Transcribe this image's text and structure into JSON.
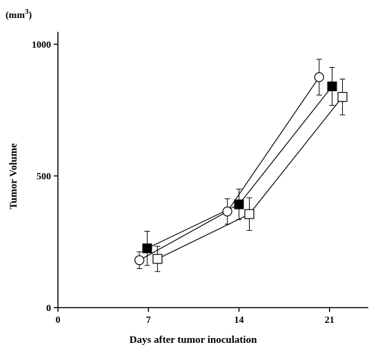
{
  "chart_data": {
    "type": "line",
    "ylabel": "Tumor Volume",
    "xlabel": "Days after tumor inoculation",
    "unit_label": "(mm",
    "unit_exponent": "3",
    "unit_close": ")",
    "xlim": [
      0,
      24
    ],
    "ylim": [
      0,
      1000
    ],
    "x_ticks": [
      0,
      7,
      14,
      21
    ],
    "x_tick_labels": [
      "0",
      "7",
      "14",
      "21"
    ],
    "y_ticks": [
      0,
      500,
      1000
    ],
    "y_tick_labels": [
      "0",
      "500",
      "1000"
    ],
    "series": [
      {
        "marker": "open-circle",
        "x": [
          6.3,
          13.1,
          20.2
        ],
        "y": [
          180,
          365,
          875
        ],
        "err": [
          32,
          48,
          68
        ]
      },
      {
        "marker": "filled-square",
        "x": [
          6.9,
          14.0,
          21.2
        ],
        "y": [
          225,
          392,
          840
        ],
        "err": [
          65,
          58,
          72
        ]
      },
      {
        "marker": "open-square",
        "x": [
          7.7,
          14.8,
          22.0
        ],
        "y": [
          185,
          355,
          800
        ],
        "err": [
          48,
          62,
          68
        ]
      }
    ]
  }
}
